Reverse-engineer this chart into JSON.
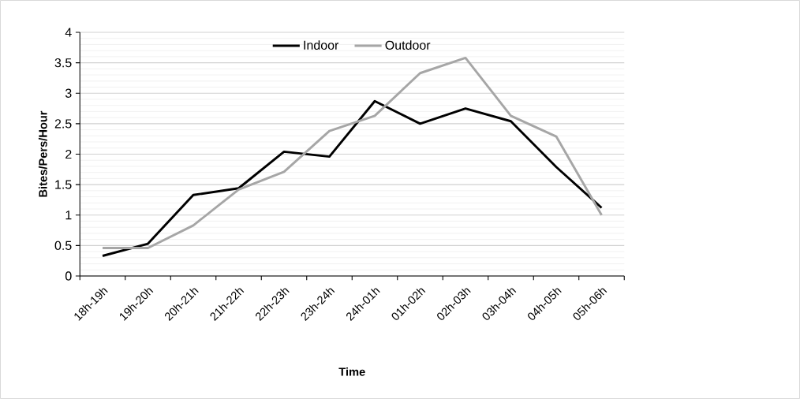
{
  "chart_data": {
    "type": "line",
    "xlabel": "Time",
    "ylabel": "Bites/Pers/Hour",
    "categories": [
      "18h-19h",
      "19h-20h",
      "20h-21h",
      "21h-22h",
      "22h-23h",
      "23h-24h",
      "24h-01h",
      "01h-02h",
      "02h-03h",
      "03h-04h",
      "04h-05h",
      "05h-06h"
    ],
    "series": [
      {
        "name": "Indoor",
        "color": "#000000",
        "values": [
          0.33,
          0.53,
          1.33,
          1.44,
          2.04,
          1.96,
          2.87,
          2.5,
          2.75,
          2.54,
          1.79,
          1.12
        ]
      },
      {
        "name": "Outdoor",
        "color": "#a6a6a6",
        "values": [
          0.46,
          0.46,
          0.83,
          1.42,
          1.71,
          2.38,
          2.63,
          3.33,
          3.58,
          2.63,
          2.29,
          1.0
        ]
      }
    ],
    "ylim": [
      0,
      4
    ],
    "yticks": [
      0,
      0.5,
      1,
      1.5,
      2,
      2.5,
      3,
      3.5,
      4
    ],
    "grid": "y",
    "legend": "top",
    "marker": "none",
    "line_style": "solid"
  }
}
